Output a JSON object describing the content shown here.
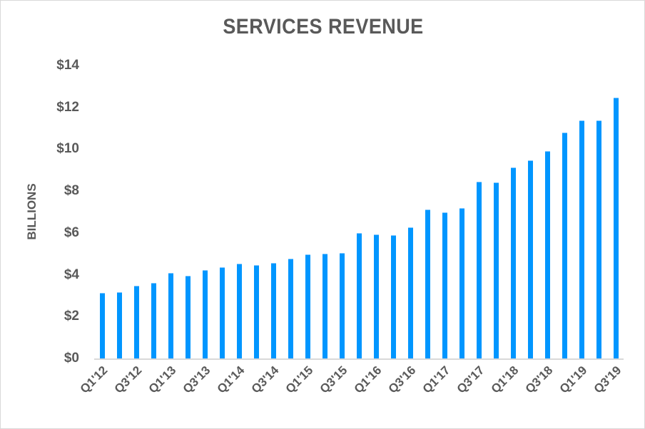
{
  "chart_data": {
    "type": "bar",
    "title": "SERVICES REVENUE",
    "xlabel": "",
    "ylabel": "BILLIONS",
    "ylim": [
      0,
      14
    ],
    "yticks": [
      "$0",
      "$2",
      "$4",
      "$6",
      "$8",
      "$10",
      "$12",
      "$14"
    ],
    "ytick_values": [
      0,
      2,
      4,
      6,
      8,
      10,
      12,
      14
    ],
    "grid": false,
    "legend": null,
    "bar_color": "#0096ff",
    "categories": [
      "Q1'12",
      "Q2'12",
      "Q3'12",
      "Q4'12",
      "Q1'13",
      "Q2'13",
      "Q3'13",
      "Q4'13",
      "Q1'14",
      "Q2'14",
      "Q3'14",
      "Q4'14",
      "Q1'15",
      "Q2'15",
      "Q3'15",
      "Q4'15",
      "Q1'16",
      "Q2'16",
      "Q3'16",
      "Q4'16",
      "Q1'17",
      "Q2'17",
      "Q3'17",
      "Q4'17",
      "Q1'18",
      "Q2'18",
      "Q3'18",
      "Q4'18",
      "Q1'19",
      "Q2'19",
      "Q3'19"
    ],
    "xtick_labels_shown": [
      "Q1'12",
      "Q3'12",
      "Q1'13",
      "Q3'13",
      "Q1'14",
      "Q3'14",
      "Q1'15",
      "Q3'15",
      "Q1'16",
      "Q3'16",
      "Q1'17",
      "Q3'17",
      "Q1'18",
      "Q3'18",
      "Q1'19",
      "Q3'19"
    ],
    "values": [
      3.12,
      3.16,
      3.46,
      3.62,
      4.08,
      3.94,
      4.21,
      4.36,
      4.52,
      4.45,
      4.55,
      4.76,
      4.96,
      5.0,
      5.03,
      6.0,
      5.94,
      5.9,
      6.28,
      7.13,
      6.99,
      7.2,
      8.46,
      8.42,
      9.14,
      9.48,
      9.92,
      10.81,
      11.39,
      11.39,
      12.46
    ]
  }
}
